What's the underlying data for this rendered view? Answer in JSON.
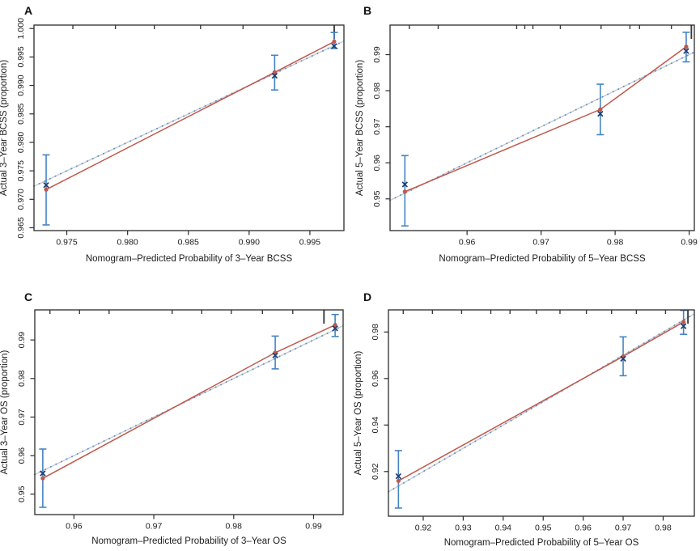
{
  "figure": {
    "kind": "nomogram-calibration-curves",
    "panel_letters": [
      "A",
      "B",
      "C",
      "D"
    ]
  },
  "colors": {
    "background": "#ffffff",
    "axis": "#2b2b2b",
    "text": "#1c1c1c",
    "ideal_line": "#c7cdd3",
    "apparent_dotted": "#5e8fc8",
    "bias_corrected_line": "#c0584c",
    "km_point": "#c0584c",
    "error_bar": "#4584c4",
    "x_marker": "#1f3d6e",
    "rug": "#3c3c3c"
  },
  "chart_data": [
    {
      "label": "A",
      "type": "scatter",
      "xlabel": "Nomogram–Predicted Probability of 3–Year BCSS",
      "ylabel": "Actual 3–Year BCSS (proportion)",
      "xlim": [
        0.9723,
        0.9978
      ],
      "ylim": [
        0.9645,
        1.0006
      ],
      "xticks": [
        0.975,
        0.98,
        0.985,
        0.99,
        0.995
      ],
      "xtick_labels": [
        "0.975",
        "0.980",
        "0.985",
        "0.990",
        "0.995"
      ],
      "yticks": [
        0.965,
        0.97,
        0.975,
        0.98,
        0.985,
        0.99,
        0.995,
        1.0
      ],
      "ytick_labels": [
        "0.965",
        "0.970",
        "0.975",
        "0.980",
        "0.985",
        "0.990",
        "0.995",
        "1.000"
      ],
      "grid": false,
      "legend": false,
      "ideal_line": true,
      "points": [
        {
          "x": 0.9733,
          "bias_corrected": 0.9725,
          "km_estimate": 0.9717,
          "ci95": [
            0.9655,
            0.9778
          ]
        },
        {
          "x": 0.9921,
          "bias_corrected": 0.9917,
          "km_estimate": 0.9923,
          "ci95": [
            0.9892,
            0.9953
          ]
        },
        {
          "x": 0.997,
          "bias_corrected": 0.9969,
          "km_estimate": 0.9977,
          "ci95": [
            0.9965,
            0.9993
          ]
        }
      ],
      "rug_x": [
        0.9755,
        0.979,
        0.9822,
        0.986,
        0.9895,
        0.9931
      ],
      "rug_tall_x": 0.997
    },
    {
      "label": "B",
      "type": "scatter",
      "xlabel": "Nomogram–Predicted Probability of 5–Year BCSS",
      "ylabel": "Actual 5–Year BCSS (proportion)",
      "xlim": [
        0.9496,
        0.9907
      ],
      "ylim": [
        0.9412,
        0.9982
      ],
      "xticks": [
        0.96,
        0.97,
        0.98,
        0.99
      ],
      "xtick_labels": [
        "0.96",
        "0.97",
        "0.98",
        "0.99"
      ],
      "yticks": [
        0.95,
        0.96,
        0.97,
        0.98,
        0.99
      ],
      "ytick_labels": [
        "0.95",
        "0.96",
        "0.97",
        "0.98",
        "0.99"
      ],
      "grid": false,
      "legend": false,
      "ideal_line": true,
      "points": [
        {
          "x": 0.9516,
          "bias_corrected": 0.954,
          "km_estimate": 0.952,
          "ci95": [
            0.9425,
            0.962
          ]
        },
        {
          "x": 0.978,
          "bias_corrected": 0.9736,
          "km_estimate": 0.9748,
          "ci95": [
            0.9678,
            0.9818
          ]
        },
        {
          "x": 0.9896,
          "bias_corrected": 0.991,
          "km_estimate": 0.9922,
          "ci95": [
            0.988,
            0.9962
          ]
        }
      ],
      "rug_x": [
        0.9522,
        0.9561,
        0.9667,
        0.9678,
        0.9689,
        0.9726,
        0.9781,
        0.982,
        0.9833,
        0.9876
      ],
      "rug_tall_x": 0.9903
    },
    {
      "label": "C",
      "type": "scatter",
      "xlabel": "Nomogram–Predicted Probability of 3–Year OS",
      "ylabel": "Actual 3–Year OS (proportion)",
      "xlim": [
        0.9551,
        0.9937
      ],
      "ylim": [
        0.9447,
        0.9978
      ],
      "xticks": [
        0.96,
        0.97,
        0.98,
        0.99
      ],
      "xtick_labels": [
        "0.96",
        "0.97",
        "0.98",
        "0.99"
      ],
      "yticks": [
        0.95,
        0.96,
        0.97,
        0.98,
        0.99
      ],
      "ytick_labels": [
        "0.95",
        "0.96",
        "0.97",
        "0.98",
        "0.99"
      ],
      "grid": false,
      "legend": false,
      "ideal_line": true,
      "points": [
        {
          "x": 0.9561,
          "bias_corrected": 0.9554,
          "km_estimate": 0.9541,
          "ci95": [
            0.9466,
            0.9617
          ]
        },
        {
          "x": 0.9852,
          "bias_corrected": 0.986,
          "km_estimate": 0.9867,
          "ci95": [
            0.9825,
            0.991
          ]
        },
        {
          "x": 0.9927,
          "bias_corrected": 0.993,
          "km_estimate": 0.9939,
          "ci95": [
            0.9909,
            0.9966
          ]
        }
      ],
      "rug_x": [
        0.957,
        0.9607,
        0.9644,
        0.9723,
        0.976,
        0.9797,
        0.9836,
        0.9874
      ],
      "rug_tall_x": 0.9913
    },
    {
      "label": "D",
      "type": "scatter",
      "xlabel": "Nomogram–Predicted Probability of 5–Year OS",
      "ylabel": "Actual 5–Year OS (proportion)",
      "xlim": [
        0.9113,
        0.9878
      ],
      "ylim": [
        0.9008,
        0.9895
      ],
      "xticks": [
        0.92,
        0.93,
        0.94,
        0.95,
        0.96,
        0.97,
        0.98
      ],
      "xtick_labels": [
        "0.92",
        "0.93",
        "0.94",
        "0.95",
        "0.96",
        "0.97",
        "0.98"
      ],
      "yticks": [
        0.92,
        0.94,
        0.96,
        0.98
      ],
      "ytick_labels": [
        "0.92",
        "0.94",
        "0.96",
        "0.98"
      ],
      "grid": false,
      "legend": false,
      "ideal_line": true,
      "points": [
        {
          "x": 0.9138,
          "bias_corrected": 0.918,
          "km_estimate": 0.916,
          "ci95": [
            0.9043,
            0.929
          ]
        },
        {
          "x": 0.97,
          "bias_corrected": 0.9685,
          "km_estimate": 0.9695,
          "ci95": [
            0.9612,
            0.9779
          ]
        },
        {
          "x": 0.9851,
          "bias_corrected": 0.9825,
          "km_estimate": 0.9843,
          "ci95": [
            0.979,
            0.9893
          ]
        }
      ],
      "rug_x": [
        0.915,
        0.9223,
        0.9296,
        0.9369,
        0.9417,
        0.9483,
        0.9542,
        0.9608,
        0.9671,
        0.9733,
        0.9806
      ],
      "rug_tall_x": 0.9862
    }
  ]
}
